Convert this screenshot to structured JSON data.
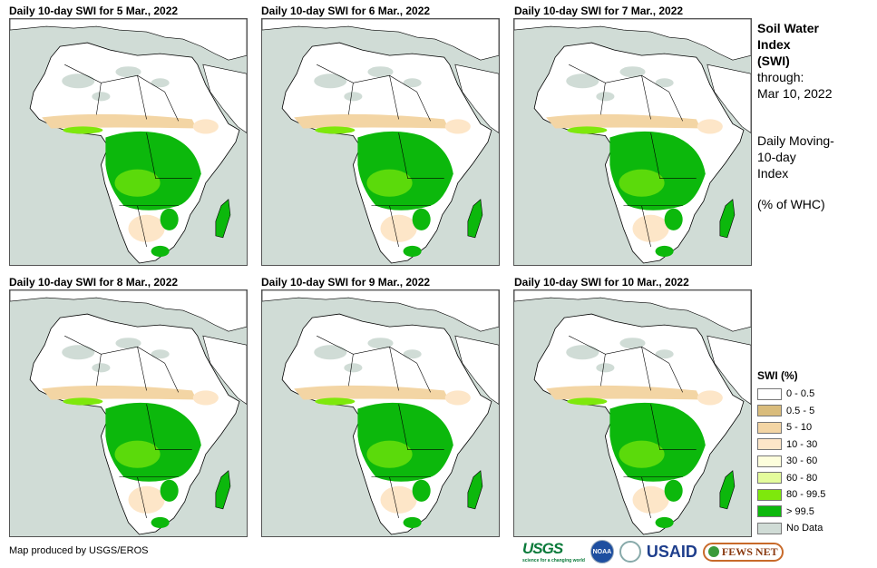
{
  "panels": [
    {
      "title": "Daily 10-day  SWI for 5 Mar., 2022"
    },
    {
      "title": "Daily 10-day  SWI for 6 Mar., 2022"
    },
    {
      "title": "Daily 10-day  SWI for 7 Mar., 2022"
    },
    {
      "title": "Daily 10-day  SWI for 8 Mar., 2022"
    },
    {
      "title": "Daily 10-day  SWI for 9 Mar., 2022"
    },
    {
      "title": "Daily 10-day  SWI for 10 Mar., 2022"
    }
  ],
  "side": {
    "title1": "Soil Water",
    "title2": "Index",
    "title3": "(SWI)",
    "through": "through:",
    "date": "Mar 10, 2022",
    "desc1": "Daily Moving-",
    "desc2": "10-day",
    "desc3": "Index",
    "unit": "(% of WHC)"
  },
  "legend": {
    "title": "SWI (%)",
    "items": [
      {
        "label": "0 - 0.5",
        "color": "#ffffff"
      },
      {
        "label": "0.5 - 5",
        "color": "#d9bc7c"
      },
      {
        "label": "5 - 10",
        "color": "#f3d5a4"
      },
      {
        "label": "10 - 30",
        "color": "#fde6c8"
      },
      {
        "label": "30 - 60",
        "color": "#fdfedc"
      },
      {
        "label": "60 - 80",
        "color": "#e4fc9c"
      },
      {
        "label": "80 - 99.5",
        "color": "#7ee80c"
      },
      {
        "label": "> 99.5",
        "color": "#0cb80c"
      },
      {
        "label": "No Data",
        "color": "#d0dcd6"
      }
    ]
  },
  "footer": {
    "credit": "Map produced by USGS/EROS",
    "logos": [
      "USGS",
      "NOAA",
      "USAID",
      "FEWS NET"
    ],
    "usgs_tagline": "science for a changing world"
  }
}
